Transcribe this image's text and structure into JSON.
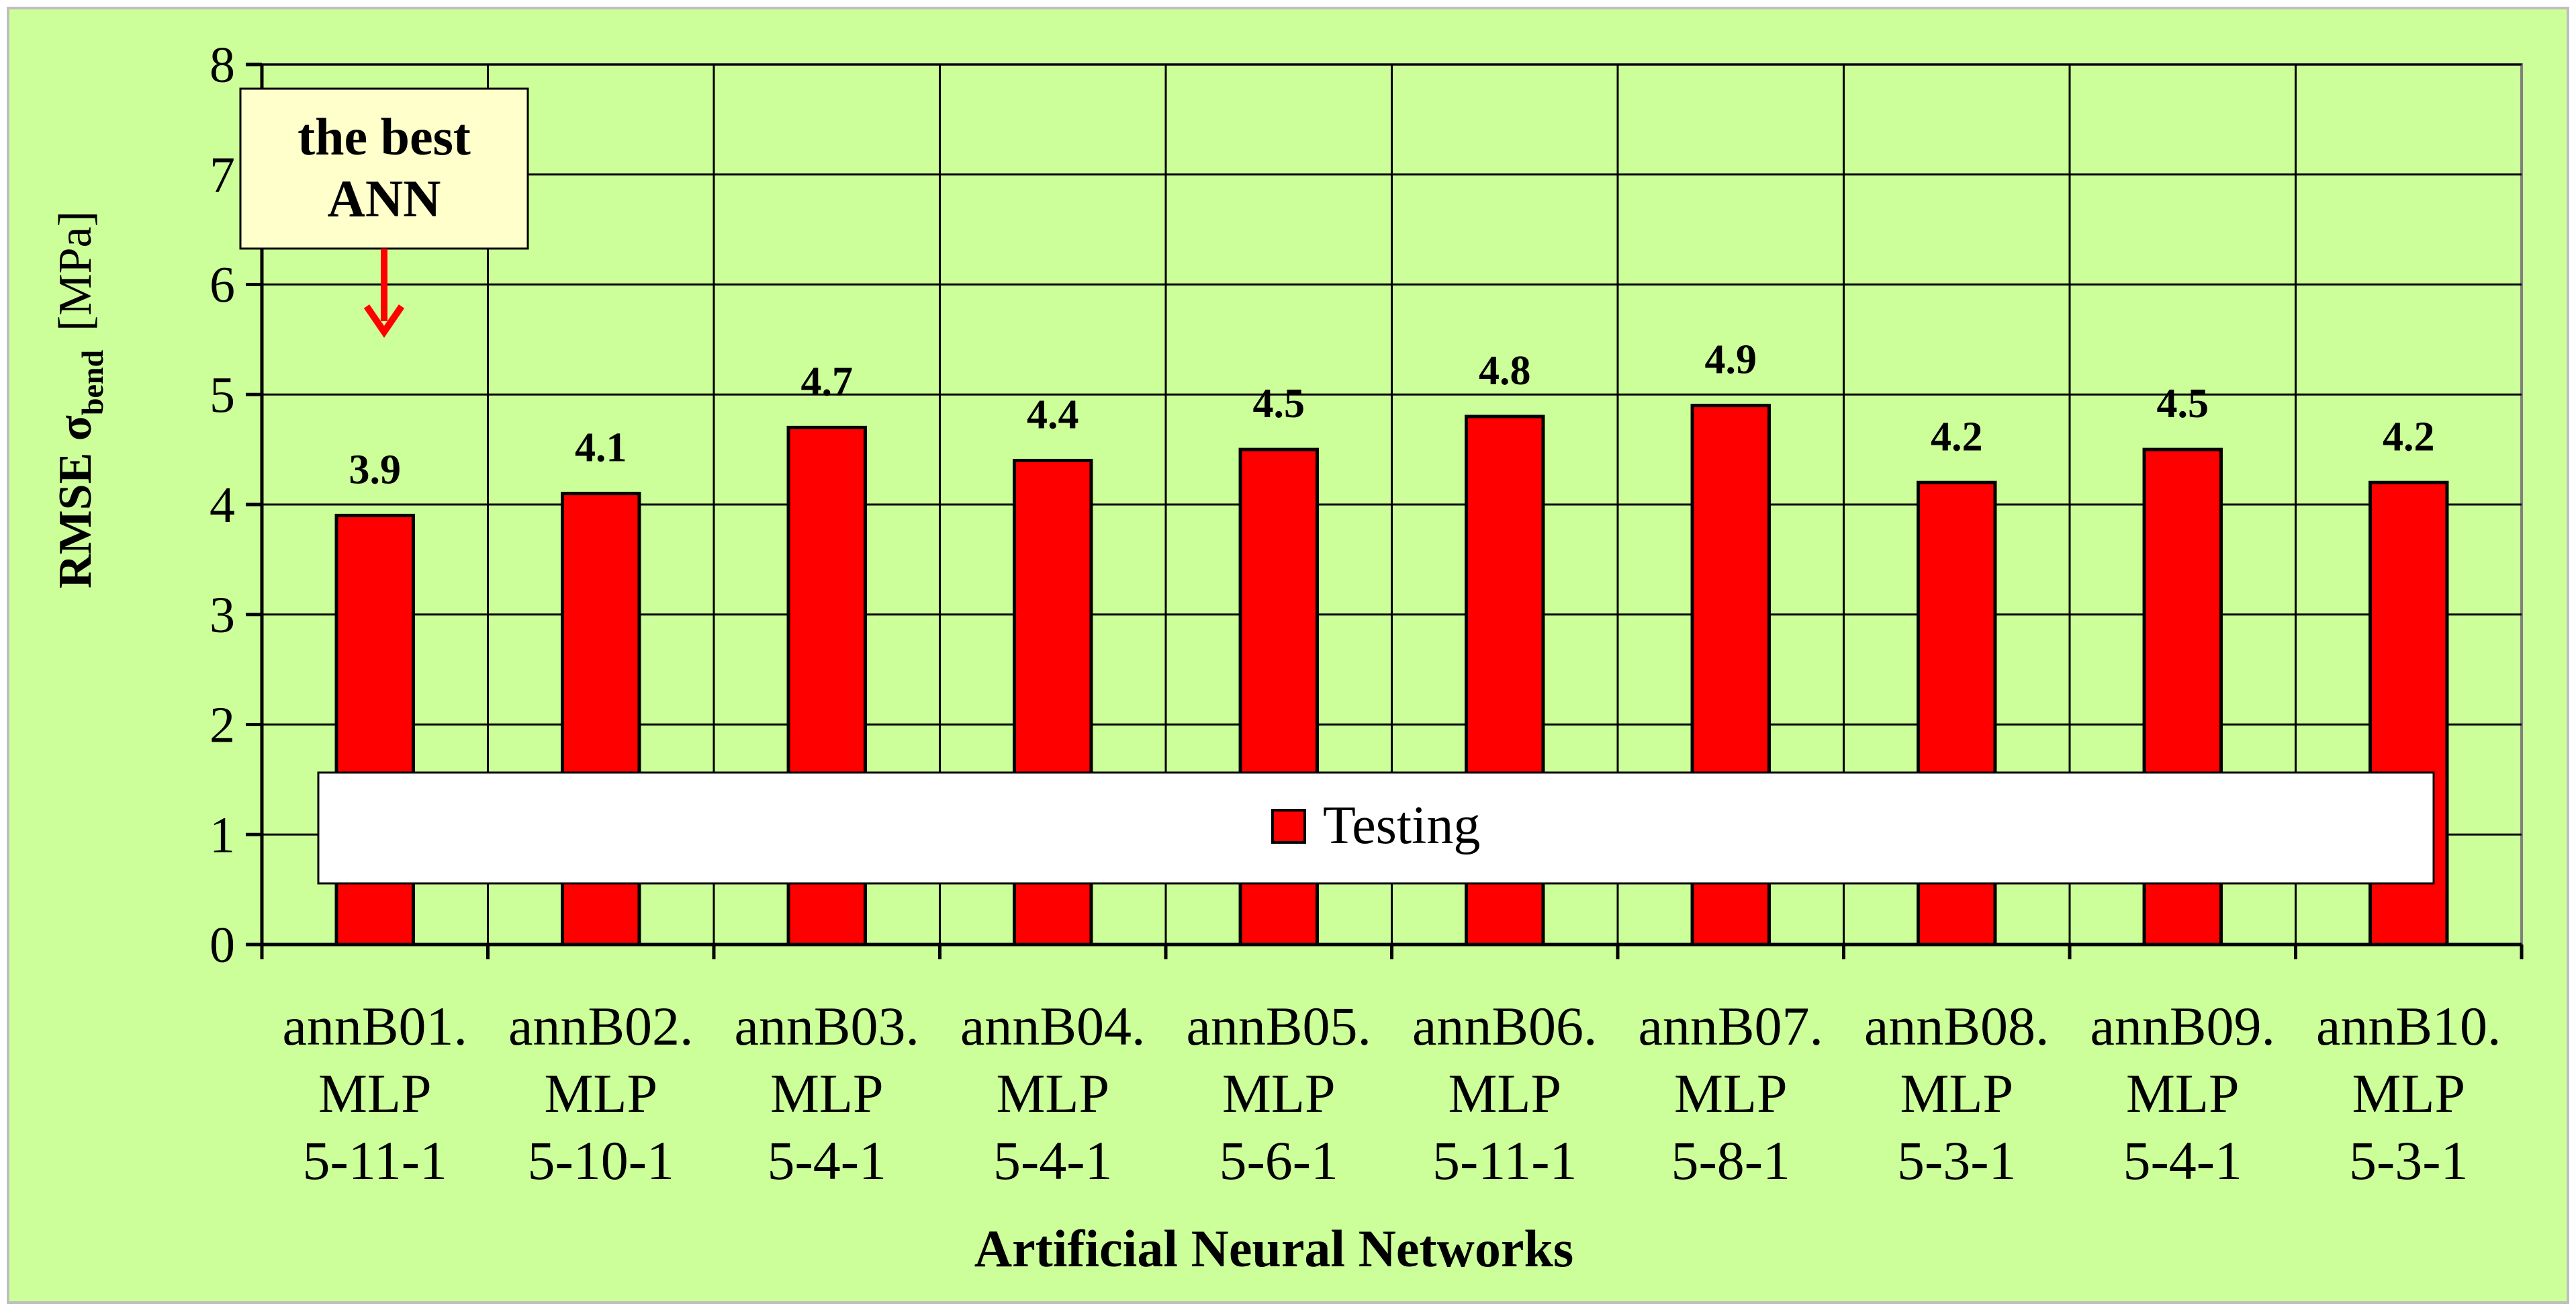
{
  "chart_data": {
    "type": "bar",
    "categories": [
      [
        "annB01.",
        "MLP",
        "5-11-1"
      ],
      [
        "annB02.",
        "MLP",
        "5-10-1"
      ],
      [
        "annB03.",
        "MLP",
        "5-4-1"
      ],
      [
        "annB04.",
        "MLP",
        "5-4-1"
      ],
      [
        "annB05.",
        "MLP",
        "5-6-1"
      ],
      [
        "annB06.",
        "MLP",
        "5-11-1"
      ],
      [
        "annB07.",
        "MLP",
        "5-8-1"
      ],
      [
        "annB08.",
        "MLP",
        "5-3-1"
      ],
      [
        "annB09.",
        "MLP",
        "5-4-1"
      ],
      [
        "annB10.",
        "MLP",
        "5-3-1"
      ]
    ],
    "series": [
      {
        "name": "Testing",
        "values": [
          3.9,
          4.1,
          4.7,
          4.4,
          4.5,
          4.8,
          4.9,
          4.2,
          4.5,
          4.2
        ],
        "labels": [
          "3.9",
          "4.1",
          "4.7",
          "4.4",
          "4.5",
          "4.8",
          "4.9",
          "4.2",
          "4.5",
          "4.2"
        ],
        "color": "#ff0000"
      }
    ],
    "ylabel": {
      "main": "RMSE σ",
      "subscript": "bend",
      "unit": "[MPa]"
    },
    "xlabel": "Artificial Neural Networks",
    "ylim": [
      0,
      8
    ],
    "yticks": [
      "0",
      "1",
      "2",
      "3",
      "4",
      "5",
      "6",
      "7",
      "8"
    ],
    "grid": true,
    "legend_placement": "bottom-center",
    "annotation": {
      "lines": [
        "the best",
        "ANN"
      ],
      "target_category_index": 0,
      "arrow_color": "#ff0000"
    },
    "colors": {
      "plot_background": "#ccff99",
      "page_background": "#ffffff",
      "grid": "#000000",
      "callout_fill": "#ffffcc",
      "legend_fill": "#ffffff"
    }
  }
}
